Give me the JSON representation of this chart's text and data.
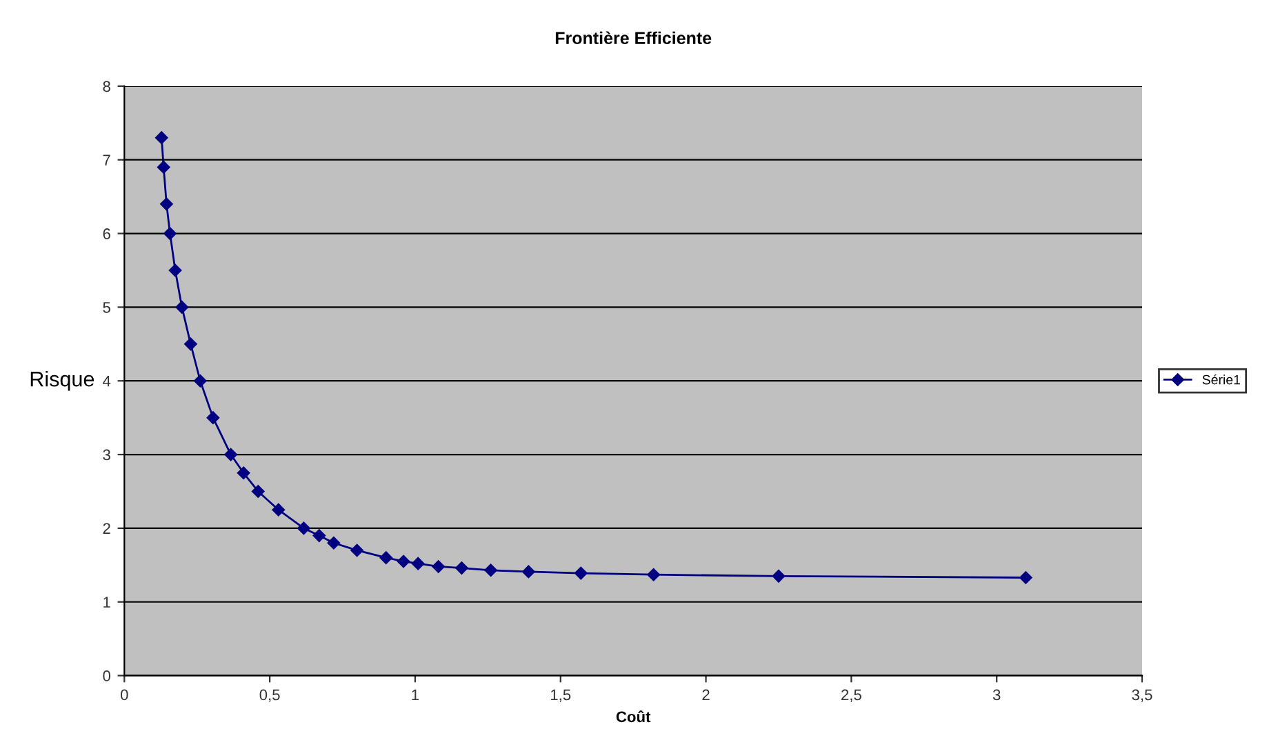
{
  "chart_data": {
    "type": "line",
    "title": "Frontière Efficiente",
    "xlabel": "Coût",
    "ylabel": "Risque",
    "xlim": [
      0,
      3.5
    ],
    "xticks": [
      0,
      {
        "value": 0.5,
        "label": "0,5"
      },
      1,
      {
        "value": 1.5,
        "label": "1,5"
      },
      2,
      {
        "value": 2.5,
        "label": "2,5"
      },
      3,
      {
        "value": 3.5,
        "label": "3,5"
      }
    ],
    "ylim": [
      0,
      8
    ],
    "yticks": [
      0,
      1,
      2,
      3,
      4,
      5,
      6,
      7,
      8
    ],
    "grid": "y",
    "legend": "right",
    "marker": "diamond",
    "line_style": "solid",
    "series": [
      {
        "name": "Série1",
        "color": "#000080",
        "x": [
          0.128,
          0.135,
          0.145,
          0.157,
          0.175,
          0.198,
          0.228,
          0.261,
          0.305,
          0.366,
          0.41,
          0.46,
          0.53,
          0.617,
          0.67,
          0.72,
          0.8,
          0.9,
          0.96,
          1.01,
          1.08,
          1.16,
          1.26,
          1.39,
          1.57,
          1.82,
          2.25,
          3.1
        ],
        "values": [
          7.3,
          6.9,
          6.4,
          6.0,
          5.5,
          5.0,
          4.5,
          4.0,
          3.5,
          3.0,
          2.75,
          2.5,
          2.25,
          2.0,
          1.9,
          1.8,
          1.7,
          1.6,
          1.55,
          1.52,
          1.48,
          1.46,
          1.43,
          1.41,
          1.39,
          1.37,
          1.35,
          1.33
        ]
      }
    ]
  }
}
